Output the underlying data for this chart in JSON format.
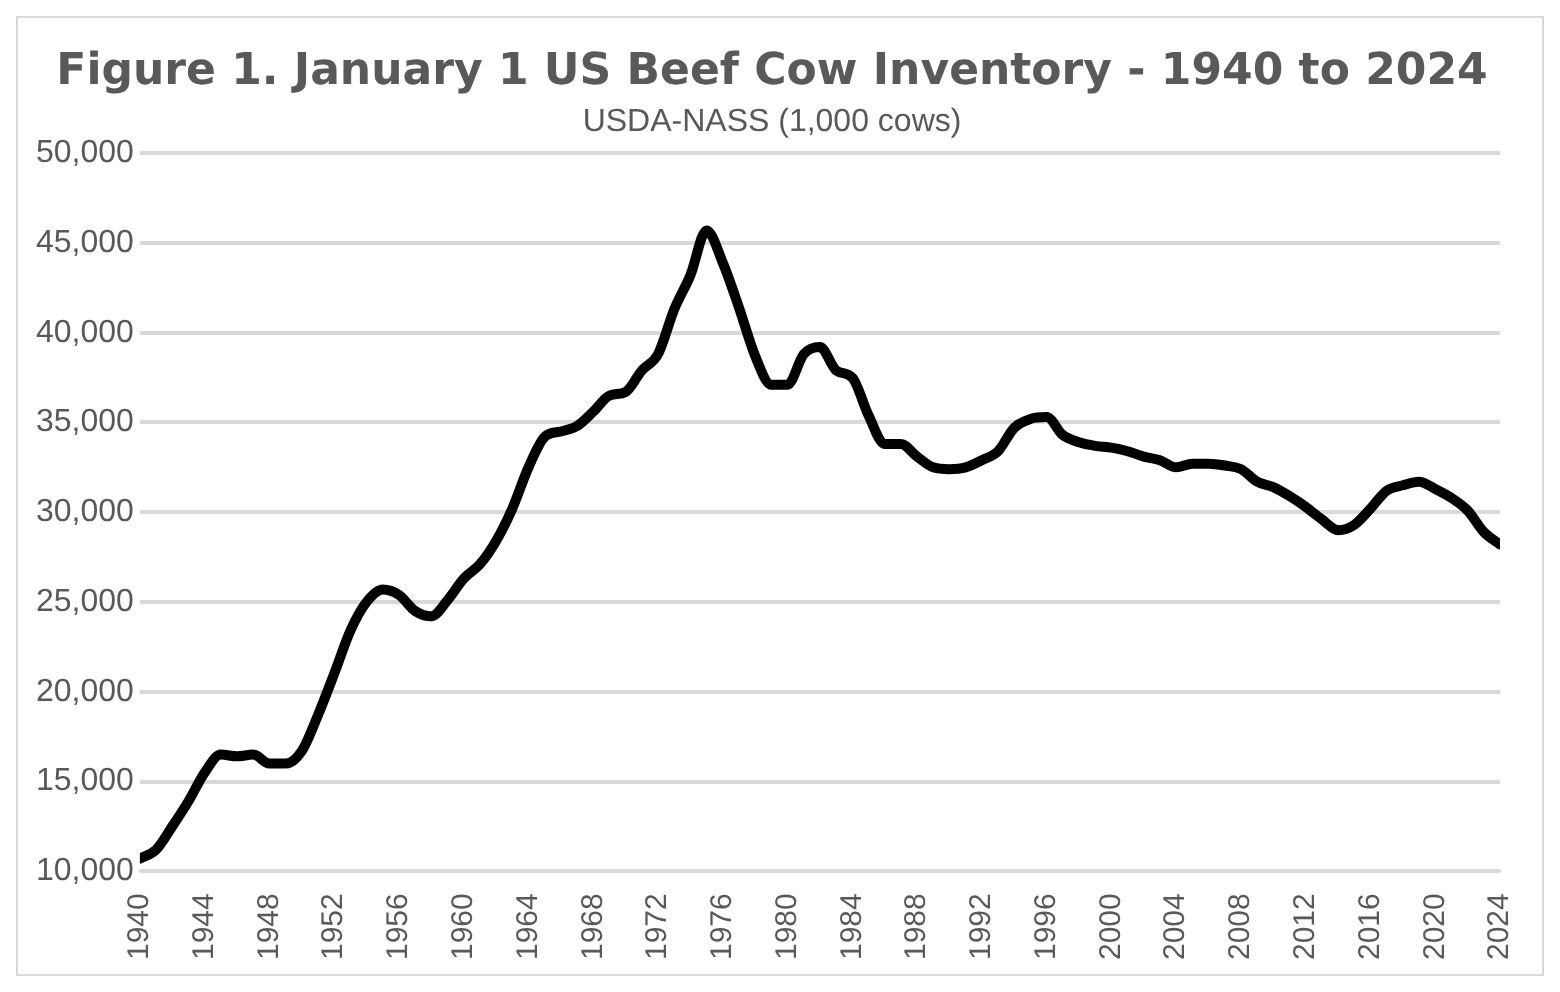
{
  "chart_data": {
    "type": "line",
    "title": "Figure 1. January 1 US Beef Cow Inventory - 1940 to 2024",
    "subtitle": "USDA-NASS (1,000 cows)",
    "x": [
      1940,
      1941,
      1942,
      1943,
      1944,
      1945,
      1946,
      1947,
      1948,
      1949,
      1950,
      1951,
      1952,
      1953,
      1954,
      1955,
      1956,
      1957,
      1958,
      1959,
      1960,
      1961,
      1962,
      1963,
      1964,
      1965,
      1966,
      1967,
      1968,
      1969,
      1970,
      1971,
      1972,
      1973,
      1974,
      1975,
      1976,
      1977,
      1978,
      1979,
      1980,
      1981,
      1982,
      1983,
      1984,
      1985,
      1986,
      1987,
      1988,
      1989,
      1990,
      1991,
      1992,
      1993,
      1994,
      1995,
      1996,
      1997,
      1998,
      1999,
      2000,
      2001,
      2002,
      2003,
      2004,
      2005,
      2006,
      2007,
      2008,
      2009,
      2010,
      2011,
      2012,
      2013,
      2014,
      2015,
      2016,
      2017,
      2018,
      2019,
      2020,
      2021,
      2022,
      2023,
      2024
    ],
    "series": [
      {
        "color": "#000000",
        "values": [
          10700,
          11200,
          12500,
          13900,
          15500,
          16500,
          16400,
          16500,
          16000,
          16000,
          16700,
          18700,
          21000,
          23400,
          25000,
          25700,
          25400,
          24500,
          24200,
          25100,
          26300,
          27100,
          28400,
          30200,
          32500,
          34200,
          34500,
          34800,
          35600,
          36500,
          36700,
          37900,
          38800,
          41300,
          43200,
          45700,
          43900,
          41400,
          38700,
          37100,
          37100,
          38800,
          39200,
          37900,
          37500,
          35400,
          33800,
          33800,
          33100,
          32500,
          32400,
          32500,
          32900,
          33400,
          34700,
          35200,
          35300,
          34300,
          33900,
          33700,
          33600,
          33400,
          33100,
          32900,
          32500,
          32700,
          32700,
          32600,
          32400,
          31700,
          31400,
          30900,
          30300,
          29600,
          29000,
          29300,
          30200,
          31200,
          31500,
          31700,
          31300,
          30800,
          30100,
          28900,
          28200
        ]
      }
    ],
    "xlim": [
      1940,
      2024
    ],
    "xticks": [
      1940,
      1944,
      1948,
      1952,
      1956,
      1960,
      1964,
      1968,
      1972,
      1976,
      1980,
      1984,
      1988,
      1992,
      1996,
      2000,
      2004,
      2008,
      2012,
      2016,
      2020,
      2024
    ],
    "ylim": [
      10000,
      50000
    ],
    "yticks": [
      {
        "value": 10000,
        "label": "10,000"
      },
      {
        "value": 15000,
        "label": "15,000"
      },
      {
        "value": 20000,
        "label": "20,000"
      },
      {
        "value": 25000,
        "label": "25,000"
      },
      {
        "value": 30000,
        "label": "30,000"
      },
      {
        "value": 35000,
        "label": "35,000"
      },
      {
        "value": 40000,
        "label": "40,000"
      },
      {
        "value": 45000,
        "label": "45,000"
      },
      {
        "value": 50000,
        "label": "50,000"
      }
    ],
    "grid": "y",
    "legend": false,
    "marker": "none",
    "line_style": "solid"
  }
}
